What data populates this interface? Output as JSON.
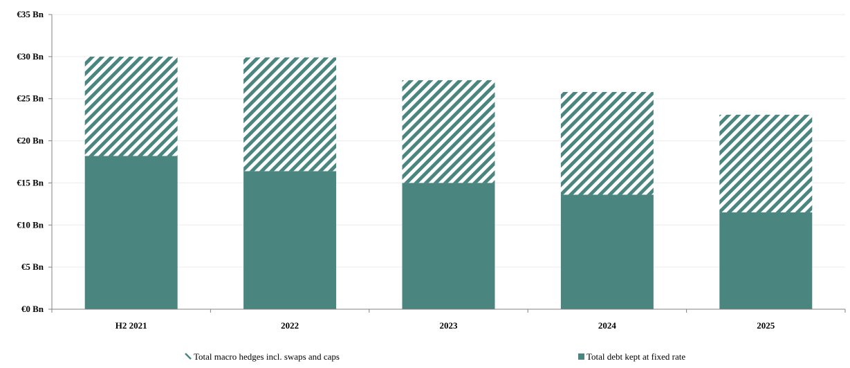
{
  "chart_data": {
    "type": "bar",
    "stacked": true,
    "categories": [
      "H2 2021",
      "2022",
      "2023",
      "2024",
      "2025"
    ],
    "series": [
      {
        "name": "Total debt kept at fixed rate",
        "values": [
          18.2,
          16.4,
          15.0,
          13.6,
          11.5
        ],
        "color": "#4a8580",
        "pattern": "solid"
      },
      {
        "name": "Total macro hedges incl. swaps and caps",
        "values": [
          11.8,
          13.5,
          12.2,
          12.2,
          11.6
        ],
        "color": "#4a8580",
        "pattern": "diagonal-stripes"
      }
    ],
    "ylim": [
      0,
      35
    ],
    "yticks": [
      0,
      5,
      10,
      15,
      20,
      25,
      30,
      35
    ],
    "ytick_labels": [
      "€0 Bn",
      "€5 Bn",
      "€10 Bn",
      "€15 Bn",
      "€20 Bn",
      "€25 Bn",
      "€30 Bn",
      "€35 Bn"
    ],
    "grid": true,
    "legend_position": "bottom",
    "title": "",
    "xlabel": "",
    "ylabel": ""
  }
}
